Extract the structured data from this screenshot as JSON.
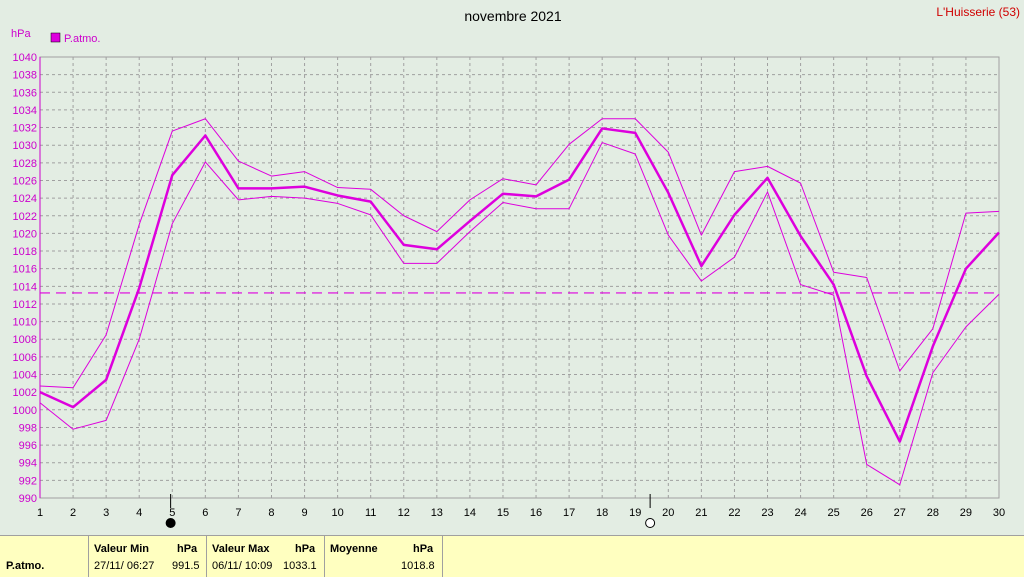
{
  "chart_data": {
    "type": "line",
    "title": "novembre 2021",
    "station": "L'Huisserie (53)",
    "ylabel": "hPa",
    "legend": [
      "P.atmo."
    ],
    "legend_placement": "top-left",
    "grid": true,
    "ylim": [
      990,
      1040
    ],
    "yticks": [
      990,
      992,
      994,
      996,
      998,
      1000,
      1002,
      1004,
      1006,
      1008,
      1010,
      1012,
      1014,
      1016,
      1018,
      1020,
      1022,
      1024,
      1026,
      1028,
      1030,
      1032,
      1034,
      1036,
      1038,
      1040
    ],
    "x": [
      1,
      2,
      3,
      4,
      5,
      6,
      7,
      8,
      9,
      10,
      11,
      12,
      13,
      14,
      15,
      16,
      17,
      18,
      19,
      20,
      21,
      22,
      23,
      24,
      25,
      26,
      27,
      28,
      29,
      30
    ],
    "series": [
      {
        "role": "mean",
        "values": [
          1002.0,
          1000.3,
          1003.4,
          1013.8,
          1026.6,
          1031.1,
          1025.1,
          1025.1,
          1025.3,
          1024.3,
          1023.6,
          1018.7,
          1018.2,
          1021.4,
          1024.5,
          1024.2,
          1026.1,
          1031.9,
          1031.4,
          1024.6,
          1016.3,
          1022.1,
          1026.3,
          1019.7,
          1014.2,
          1003.8,
          996.4,
          1007.2,
          1016.0,
          1020.1
        ]
      },
      {
        "role": "max",
        "values": [
          1002.7,
          1002.5,
          1008.5,
          1021.0,
          1031.6,
          1033.0,
          1028.2,
          1026.5,
          1027.0,
          1025.2,
          1025.0,
          1022.0,
          1020.2,
          1023.8,
          1026.2,
          1025.5,
          1030.1,
          1033.0,
          1033.0,
          1029.2,
          1019.8,
          1027.0,
          1027.6,
          1025.7,
          1015.6,
          1015.0,
          1004.4,
          1009.2,
          1022.3,
          1022.5
        ]
      },
      {
        "role": "min",
        "values": [
          1000.8,
          997.8,
          998.8,
          1008.0,
          1021.1,
          1028.1,
          1023.8,
          1024.2,
          1024.0,
          1023.4,
          1022.1,
          1016.6,
          1016.6,
          1020.2,
          1023.5,
          1022.8,
          1022.8,
          1030.3,
          1029.0,
          1019.8,
          1014.6,
          1017.3,
          1024.7,
          1014.2,
          1013.0,
          993.8,
          991.5,
          1004.2,
          1009.4,
          1013.1
        ]
      }
    ],
    "reference_line": 1013.25,
    "moon_phases": [
      {
        "day": 4.95,
        "phase": "new"
      },
      {
        "day": 19.45,
        "phase": "full"
      }
    ],
    "colors": {
      "series": "#dd00dd",
      "axis": "#cc00cc",
      "grid": "#a0a0a0",
      "station": "#d00000"
    }
  },
  "footer": {
    "param_label": "P.atmo.",
    "min_label": "Valeur Min",
    "min_unit": "hPa",
    "min_date": "27/11/ 06:27",
    "min_value": "991.5",
    "max_label": "Valeur Max",
    "max_unit": "hPa",
    "max_date": "06/11/ 10:09",
    "max_value": "1033.1",
    "avg_label": "Moyenne",
    "avg_unit": "hPa",
    "avg_value": "1018.8"
  }
}
